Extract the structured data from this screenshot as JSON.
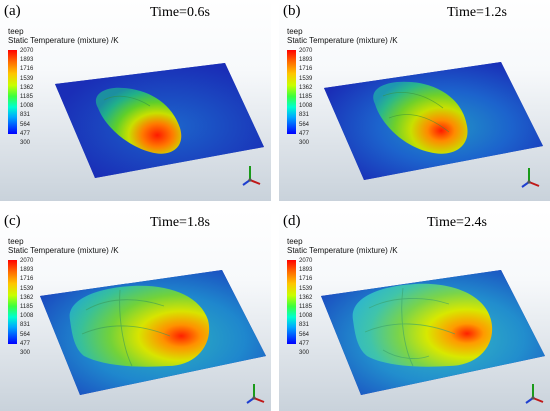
{
  "colorbar": {
    "variable": "teep",
    "quantity": "Static Temperature (mixture) /K",
    "ticks": [
      "2070",
      "1893",
      "1716",
      "1539",
      "1362",
      "1185",
      "1008",
      "831",
      "564",
      "477",
      "300"
    ]
  },
  "panels": [
    {
      "label": "(a)",
      "time": "Time=0.6s"
    },
    {
      "label": "(b)",
      "time": "Time=1.2s"
    },
    {
      "label": "(c)",
      "time": "Time=1.8s"
    },
    {
      "label": "(d)",
      "time": "Time=2.4s"
    }
  ],
  "icons": [
    "axis-triad-icon"
  ]
}
